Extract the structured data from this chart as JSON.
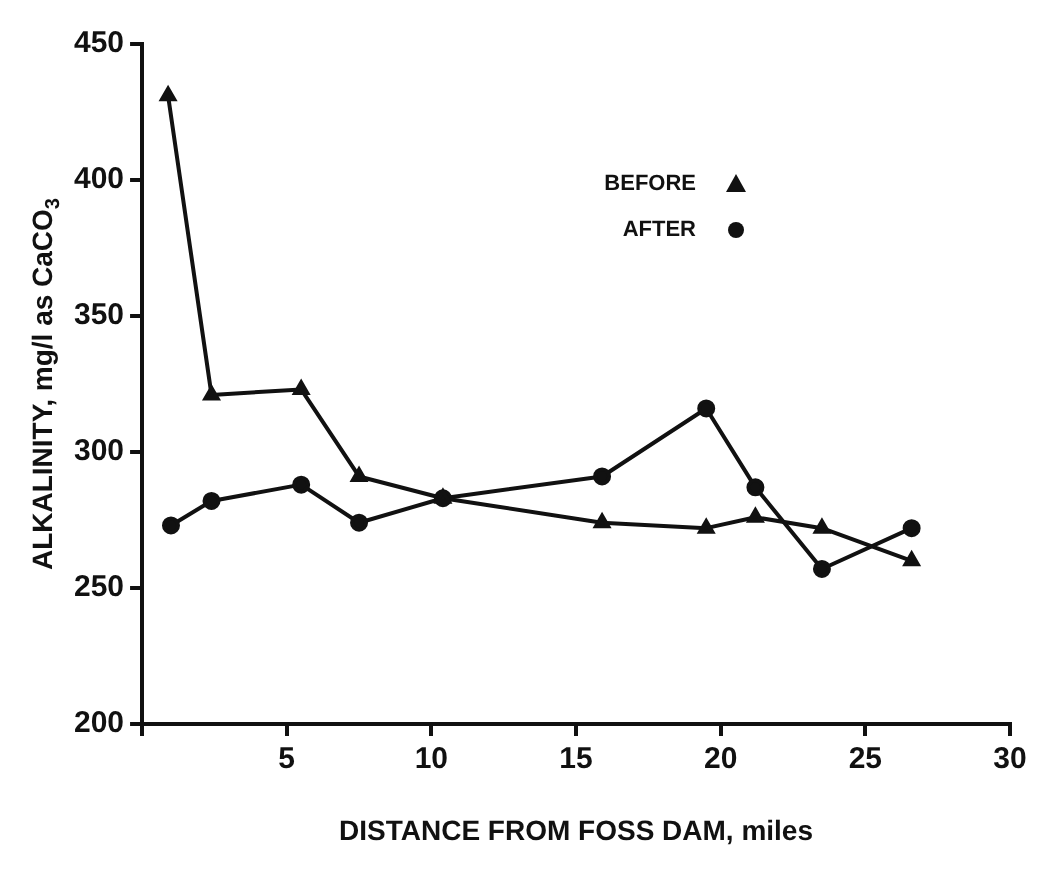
{
  "chart_data": {
    "type": "line",
    "xlabel": "DISTANCE FROM FOSS DAM, miles",
    "ylabel": "ALKALINITY, mg/l as CaCO$_{3}$",
    "xlim": [
      0,
      30
    ],
    "xticks": [
      {
        "value": 0,
        "label": null
      },
      5,
      10,
      15,
      20,
      25,
      30
    ],
    "ylim": [
      200,
      450
    ],
    "yticks": [
      200,
      250,
      300,
      350,
      400,
      450
    ],
    "grid": false,
    "legend": "top",
    "line_style": "solid",
    "series": [
      {
        "name": "BEFORE",
        "color": "#111111",
        "marker": "triangle",
        "x": [
          0.9,
          2.4,
          5.5,
          7.5,
          10.4,
          15.9,
          19.5,
          21.2,
          23.5,
          26.6
        ],
        "values": [
          431,
          321,
          323,
          291,
          283,
          274,
          272,
          276,
          272,
          260
        ]
      },
      {
        "name": "AFTER",
        "color": "#111111",
        "marker": "circle",
        "x": [
          1.0,
          2.4,
          5.5,
          7.5,
          10.4,
          15.9,
          19.5,
          21.2,
          23.5,
          26.6
        ],
        "values": [
          273,
          282,
          288,
          274,
          283,
          291,
          316,
          287,
          257,
          272
        ]
      }
    ]
  }
}
